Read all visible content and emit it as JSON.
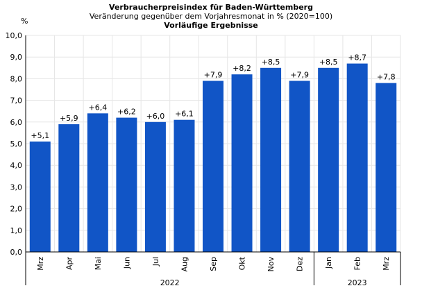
{
  "chart_data": {
    "type": "bar",
    "title": "Verbraucherpreisindex für Baden-Württemberg",
    "subtitle": "Veränderung gegenüber dem Vorjahresmonat in % (2020=100)",
    "subtitle2": "Vorläufige Ergebnisse",
    "ylabel": "%",
    "xlabel": "",
    "ylim": [
      0,
      10
    ],
    "yticks": [
      "0,0",
      "1,0",
      "2,0",
      "3,0",
      "4,0",
      "5,0",
      "6,0",
      "7,0",
      "8,0",
      "9,0",
      "10,0"
    ],
    "grid": true,
    "categories": [
      "Mrz",
      "Apr",
      "Mai",
      "Jun",
      "Jul",
      "Aug",
      "Sep",
      "Okt",
      "Nov",
      "Dez",
      "Jan",
      "Feb",
      "Mrz"
    ],
    "values": [
      5.1,
      5.9,
      6.4,
      6.2,
      6.0,
      6.1,
      7.9,
      8.2,
      8.5,
      7.9,
      8.5,
      8.7,
      7.8
    ],
    "data_labels": [
      "+5,1",
      "+5,9",
      "+6,4",
      "+6,2",
      "+6,0",
      "+6,1",
      "+7,9",
      "+8,2",
      "+8,5",
      "+7,9",
      "+8,5",
      "+8,7",
      "+7,8"
    ],
    "year_groups": [
      {
        "label": "2022",
        "count": 10
      },
      {
        "label": "2023",
        "count": 3
      }
    ],
    "bar_color": "#1155c6",
    "grid_color": "#e6e6e6"
  }
}
